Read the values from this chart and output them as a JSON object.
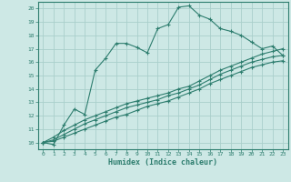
{
  "title": "",
  "xlabel": "Humidex (Indice chaleur)",
  "ylabel": "",
  "bg_color": "#cde8e5",
  "line_color": "#2d7d6e",
  "grid_color": "#aacfcb",
  "xlim": [
    -0.5,
    23.5
  ],
  "ylim": [
    9.5,
    20.5
  ],
  "xticks": [
    0,
    1,
    2,
    3,
    4,
    5,
    6,
    7,
    8,
    9,
    10,
    11,
    12,
    13,
    14,
    15,
    16,
    17,
    18,
    19,
    20,
    21,
    22,
    23
  ],
  "yticks": [
    10,
    11,
    12,
    13,
    14,
    15,
    16,
    17,
    18,
    19,
    20
  ],
  "series": [
    {
      "x": [
        0,
        1,
        2,
        3,
        4,
        5,
        6,
        7,
        8,
        9,
        10,
        11,
        12,
        13,
        14,
        15,
        16,
        17,
        18,
        19,
        20,
        21,
        22,
        23
      ],
      "y": [
        10.0,
        9.85,
        11.3,
        12.5,
        12.1,
        15.4,
        16.3,
        17.4,
        17.4,
        17.1,
        16.7,
        18.5,
        18.8,
        20.1,
        20.2,
        19.5,
        19.2,
        18.5,
        18.3,
        18.0,
        17.5,
        17.0,
        17.2,
        16.5
      ]
    },
    {
      "x": [
        0,
        1,
        2,
        3,
        4,
        5,
        6,
        7,
        8,
        9,
        10,
        11,
        12,
        13,
        14,
        15,
        16,
        17,
        18,
        19,
        20,
        21,
        22,
        23
      ],
      "y": [
        10.0,
        10.4,
        10.9,
        11.3,
        11.7,
        12.0,
        12.3,
        12.6,
        12.9,
        13.1,
        13.3,
        13.5,
        13.7,
        14.0,
        14.2,
        14.6,
        15.0,
        15.4,
        15.7,
        16.0,
        16.3,
        16.6,
        16.8,
        17.0
      ]
    },
    {
      "x": [
        0,
        1,
        2,
        3,
        4,
        5,
        6,
        7,
        8,
        9,
        10,
        11,
        12,
        13,
        14,
        15,
        16,
        17,
        18,
        19,
        20,
        21,
        22,
        23
      ],
      "y": [
        10.0,
        10.2,
        10.6,
        11.0,
        11.4,
        11.7,
        12.0,
        12.3,
        12.6,
        12.8,
        13.0,
        13.2,
        13.5,
        13.7,
        14.0,
        14.3,
        14.7,
        15.1,
        15.4,
        15.7,
        16.0,
        16.2,
        16.4,
        16.5
      ]
    },
    {
      "x": [
        0,
        1,
        2,
        3,
        4,
        5,
        6,
        7,
        8,
        9,
        10,
        11,
        12,
        13,
        14,
        15,
        16,
        17,
        18,
        19,
        20,
        21,
        22,
        23
      ],
      "y": [
        10.0,
        10.1,
        10.4,
        10.7,
        11.0,
        11.3,
        11.6,
        11.9,
        12.1,
        12.4,
        12.7,
        12.9,
        13.1,
        13.4,
        13.7,
        14.0,
        14.4,
        14.7,
        15.0,
        15.3,
        15.6,
        15.8,
        16.0,
        16.1
      ]
    }
  ]
}
